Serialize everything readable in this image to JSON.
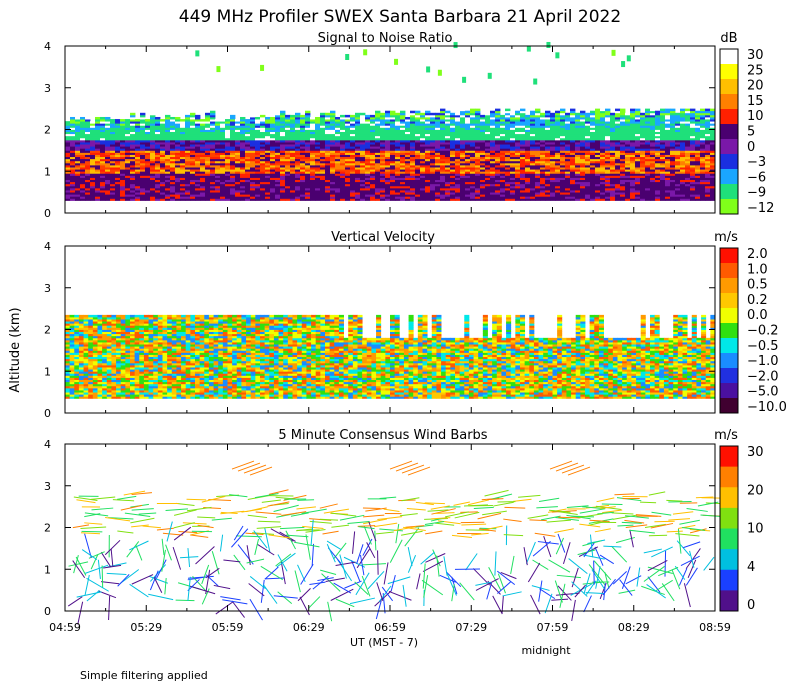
{
  "title": "449 MHz Profiler SWEX Santa Barbara 21 April 2022",
  "ylabel": "Altitude (km)",
  "xlabel": "UT  (MST - 7)",
  "midnight_label": "midnight",
  "footnote": "Simple filtering applied",
  "x_ticks": [
    "04:59",
    "05:29",
    "05:59",
    "06:29",
    "06:59",
    "07:29",
    "07:59",
    "08:29",
    "08:59"
  ],
  "y_ticks": [
    "0",
    "1",
    "2",
    "3",
    "4"
  ],
  "chart_data": [
    {
      "type": "heatmap",
      "title": "Signal to Noise Ratio",
      "unit": "dB",
      "ylim": [
        0,
        4
      ],
      "colorbar": {
        "labels": [
          "30",
          "25",
          "20",
          "15",
          "10",
          "5",
          "0",
          "−3",
          "−6",
          "−9",
          "−12"
        ],
        "colors": [
          "#ffffff",
          "#ffff00",
          "#ffbf00",
          "#ff8000",
          "#ff2000",
          "#4a0070",
          "#7a18a8",
          "#1a2fe0",
          "#1aa6ff",
          "#1fe07a",
          "#80ff1a"
        ]
      }
    },
    {
      "type": "heatmap",
      "title": "Vertical Velocity",
      "unit": "m/s",
      "ylim": [
        0,
        4
      ],
      "colorbar": {
        "labels": [
          "2.0",
          "1.0",
          "0.5",
          "0.2",
          "0.0",
          "−0.2",
          "−0.5",
          "−1.0",
          "−2.0",
          "−5.0",
          "−10.0"
        ],
        "colors": [
          "#ff1000",
          "#ff5a00",
          "#ff9a00",
          "#ffc800",
          "#f0ff00",
          "#30e010",
          "#00e8e8",
          "#1a8cff",
          "#2030e0",
          "#4a10a0",
          "#400030"
        ]
      }
    },
    {
      "type": "scatter",
      "title": "5 Minute Consensus Wind Barbs",
      "unit": "m/s",
      "ylim": [
        0,
        4
      ],
      "colorbar": {
        "labels": [
          "30",
          "20",
          "10",
          "4",
          "0"
        ],
        "colors": [
          "#ff1000",
          "#ff8000",
          "#ffc000",
          "#80e010",
          "#20e060",
          "#00c0e0",
          "#1a40ff",
          "#50108a"
        ]
      }
    }
  ]
}
